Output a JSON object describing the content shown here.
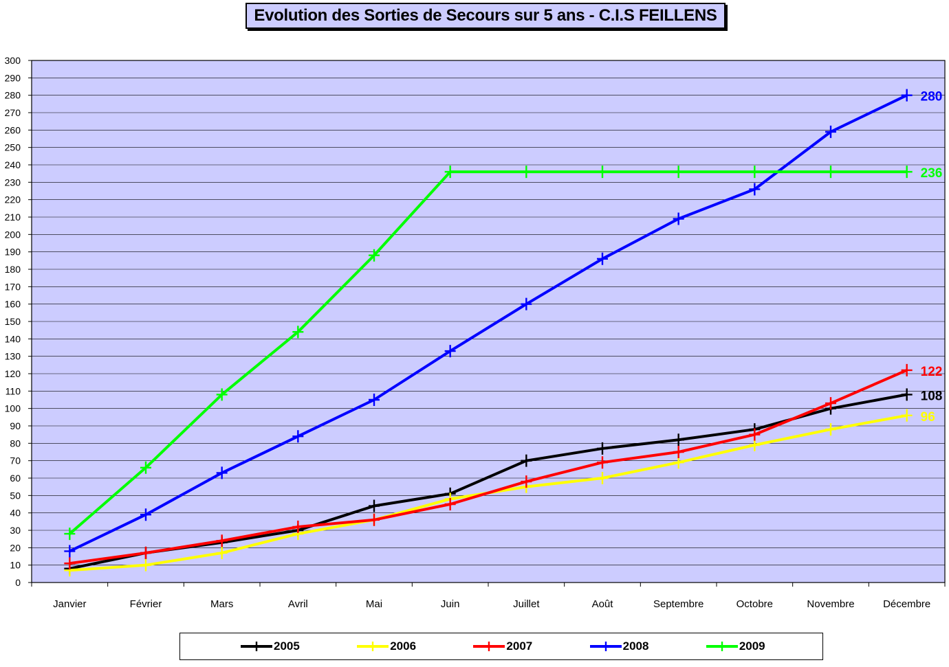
{
  "chart_data": {
    "type": "line",
    "title": "Evolution des Sorties de Secours sur 5 ans - C.I.S FEILLENS",
    "categories": [
      "Janvier",
      "Février",
      "Mars",
      "Avril",
      "Mai",
      "Juin",
      "Juillet",
      "Août",
      "Septembre",
      "Octobre",
      "Novembre",
      "Décembre"
    ],
    "ylim": [
      0,
      300
    ],
    "ytick_step": 10,
    "grid": "horizontal",
    "plot_background": "#ccccff",
    "legend_position": "bottom",
    "series": [
      {
        "name": "2005",
        "color": "#000000",
        "values": [
          8,
          17,
          23,
          30,
          44,
          51,
          70,
          77,
          82,
          88,
          100,
          108
        ],
        "end_label": "108"
      },
      {
        "name": "2006",
        "color": "#ffff00",
        "values": [
          7,
          10,
          17,
          28,
          36,
          48,
          55,
          60,
          69,
          79,
          88,
          96
        ],
        "end_label": "96"
      },
      {
        "name": "2007",
        "color": "#ff0000",
        "values": [
          11,
          17,
          24,
          32,
          36,
          45,
          58,
          69,
          75,
          85,
          103,
          122
        ],
        "end_label": "122"
      },
      {
        "name": "2008",
        "color": "#0000ff",
        "values": [
          18,
          39,
          63,
          84,
          105,
          133,
          160,
          186,
          209,
          226,
          259,
          280
        ],
        "end_label": "280"
      },
      {
        "name": "2009",
        "color": "#00ff00",
        "values": [
          28,
          66,
          108,
          144,
          188,
          236,
          236,
          236,
          236,
          236,
          236,
          236
        ],
        "end_label": "236"
      }
    ]
  }
}
